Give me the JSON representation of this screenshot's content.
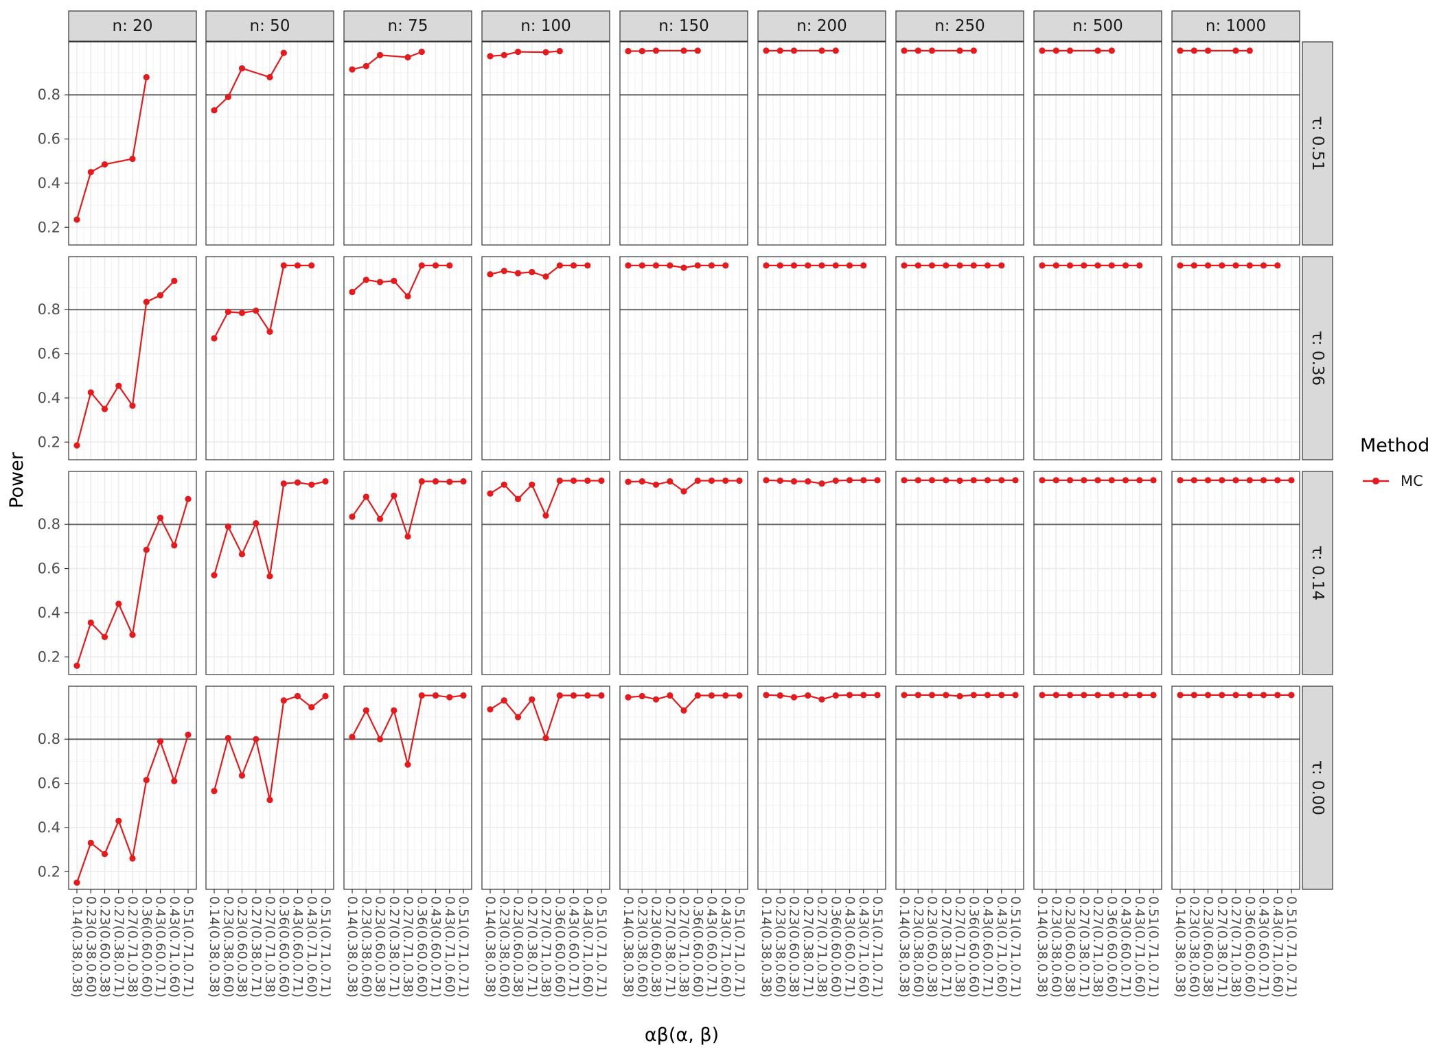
{
  "chart_data": {
    "type": "line",
    "xlabel": "αβ(α, β)",
    "ylabel": "Power",
    "ylim": [
      0.12,
      1.04
    ],
    "y_ticks": [
      "0.2",
      "0.4",
      "0.6",
      "0.8"
    ],
    "reference_line": 0.8,
    "grid": true,
    "legend": {
      "title": "Method",
      "position": "right",
      "entries": [
        {
          "label": "MC",
          "color": "#E41A1C"
        }
      ]
    },
    "categories": [
      "0.14(0.38,0.38)",
      "0.23(0.38,0.60)",
      "0.23(0.60,0.38)",
      "0.27(0.38,0.71)",
      "0.27(0.71,0.38)",
      "0.36(0.60,0.60)",
      "0.43(0.60,0.71)",
      "0.43(0.71,0.60)",
      "0.51(0.71,0.71)"
    ],
    "column_labels": [
      "n: 20",
      "n: 50",
      "n: 75",
      "n: 100",
      "n: 150",
      "n: 200",
      "n: 250",
      "n: 500",
      "n: 1000"
    ],
    "row_labels": [
      "τ: 0.51",
      "τ: 0.36",
      "τ: 0.14",
      "τ: 0.00"
    ],
    "panels": [
      [
        [
          [
            0,
            0.235
          ],
          [
            1,
            0.45
          ],
          [
            2,
            0.485
          ],
          [
            4,
            0.51
          ],
          [
            5,
            0.88
          ]
        ],
        [
          [
            0,
            0.73
          ],
          [
            1,
            0.79
          ],
          [
            2,
            0.92
          ],
          [
            4,
            0.88
          ],
          [
            5,
            0.99
          ]
        ],
        [
          [
            0,
            0.915
          ],
          [
            1,
            0.93
          ],
          [
            2,
            0.98
          ],
          [
            4,
            0.97
          ],
          [
            5,
            0.995
          ]
        ],
        [
          [
            0,
            0.975
          ],
          [
            1,
            0.98
          ],
          [
            2,
            0.995
          ],
          [
            4,
            0.993
          ],
          [
            5,
            0.998
          ]
        ],
        [
          [
            0,
            0.998
          ],
          [
            1,
            0.998
          ],
          [
            2,
            1.0
          ],
          [
            4,
            1.0
          ],
          [
            5,
            1.0
          ]
        ],
        [
          [
            0,
            1.0
          ],
          [
            1,
            1.0
          ],
          [
            2,
            1.0
          ],
          [
            4,
            1.0
          ],
          [
            5,
            1.0
          ]
        ],
        [
          [
            0,
            1.0
          ],
          [
            1,
            1.0
          ],
          [
            2,
            1.0
          ],
          [
            4,
            1.0
          ],
          [
            5,
            1.0
          ]
        ],
        [
          [
            0,
            1.0
          ],
          [
            1,
            1.0
          ],
          [
            2,
            1.0
          ],
          [
            4,
            1.0
          ],
          [
            5,
            1.0
          ]
        ],
        [
          [
            0,
            1.0
          ],
          [
            1,
            1.0
          ],
          [
            2,
            1.0
          ],
          [
            4,
            1.0
          ],
          [
            5,
            1.0
          ]
        ]
      ],
      [
        [
          [
            0,
            0.185
          ],
          [
            1,
            0.425
          ],
          [
            2,
            0.35
          ],
          [
            3,
            0.455
          ],
          [
            4,
            0.365
          ],
          [
            5,
            0.835
          ],
          [
            6,
            0.865
          ],
          [
            7,
            0.93
          ]
        ],
        [
          [
            0,
            0.67
          ],
          [
            1,
            0.79
          ],
          [
            2,
            0.785
          ],
          [
            3,
            0.795
          ],
          [
            4,
            0.7
          ],
          [
            5,
            1.0
          ],
          [
            6,
            1.0
          ],
          [
            7,
            1.0
          ]
        ],
        [
          [
            0,
            0.88
          ],
          [
            1,
            0.935
          ],
          [
            2,
            0.925
          ],
          [
            3,
            0.93
          ],
          [
            4,
            0.86
          ],
          [
            5,
            1.0
          ],
          [
            6,
            1.0
          ],
          [
            7,
            1.0
          ]
        ],
        [
          [
            0,
            0.96
          ],
          [
            1,
            0.975
          ],
          [
            2,
            0.965
          ],
          [
            3,
            0.97
          ],
          [
            4,
            0.95
          ],
          [
            5,
            1.0
          ],
          [
            6,
            1.0
          ],
          [
            7,
            1.0
          ]
        ],
        [
          [
            0,
            1.0
          ],
          [
            1,
            1.0
          ],
          [
            2,
            1.0
          ],
          [
            3,
            1.0
          ],
          [
            4,
            0.99
          ],
          [
            5,
            1.0
          ],
          [
            6,
            1.0
          ],
          [
            7,
            1.0
          ]
        ],
        [
          [
            0,
            1.0
          ],
          [
            1,
            1.0
          ],
          [
            2,
            1.0
          ],
          [
            3,
            1.0
          ],
          [
            4,
            1.0
          ],
          [
            5,
            1.0
          ],
          [
            6,
            1.0
          ],
          [
            7,
            1.0
          ]
        ],
        [
          [
            0,
            1.0
          ],
          [
            1,
            1.0
          ],
          [
            2,
            1.0
          ],
          [
            3,
            1.0
          ],
          [
            4,
            1.0
          ],
          [
            5,
            1.0
          ],
          [
            6,
            1.0
          ],
          [
            7,
            1.0
          ]
        ],
        [
          [
            0,
            1.0
          ],
          [
            1,
            1.0
          ],
          [
            2,
            1.0
          ],
          [
            3,
            1.0
          ],
          [
            4,
            1.0
          ],
          [
            5,
            1.0
          ],
          [
            6,
            1.0
          ],
          [
            7,
            1.0
          ]
        ],
        [
          [
            0,
            1.0
          ],
          [
            1,
            1.0
          ],
          [
            2,
            1.0
          ],
          [
            3,
            1.0
          ],
          [
            4,
            1.0
          ],
          [
            5,
            1.0
          ],
          [
            6,
            1.0
          ],
          [
            7,
            1.0
          ]
        ]
      ],
      [
        [
          [
            0,
            0.16
          ],
          [
            1,
            0.355
          ],
          [
            2,
            0.29
          ],
          [
            3,
            0.44
          ],
          [
            4,
            0.3
          ],
          [
            5,
            0.685
          ],
          [
            6,
            0.83
          ],
          [
            7,
            0.705
          ],
          [
            8,
            0.915
          ]
        ],
        [
          [
            0,
            0.57
          ],
          [
            1,
            0.79
          ],
          [
            2,
            0.665
          ],
          [
            3,
            0.805
          ],
          [
            4,
            0.565
          ],
          [
            5,
            0.985
          ],
          [
            6,
            0.99
          ],
          [
            7,
            0.98
          ],
          [
            8,
            0.995
          ]
        ],
        [
          [
            0,
            0.835
          ],
          [
            1,
            0.925
          ],
          [
            2,
            0.825
          ],
          [
            3,
            0.93
          ],
          [
            4,
            0.745
          ],
          [
            5,
            0.995
          ],
          [
            6,
            0.995
          ],
          [
            7,
            0.993
          ],
          [
            8,
            0.995
          ]
        ],
        [
          [
            0,
            0.94
          ],
          [
            1,
            0.98
          ],
          [
            2,
            0.915
          ],
          [
            3,
            0.98
          ],
          [
            4,
            0.84
          ],
          [
            5,
            0.998
          ],
          [
            6,
            0.998
          ],
          [
            7,
            0.998
          ],
          [
            8,
            0.998
          ]
        ],
        [
          [
            0,
            0.993
          ],
          [
            1,
            0.995
          ],
          [
            2,
            0.98
          ],
          [
            3,
            0.995
          ],
          [
            4,
            0.95
          ],
          [
            5,
            0.998
          ],
          [
            6,
            0.998
          ],
          [
            7,
            0.998
          ],
          [
            8,
            0.998
          ]
        ],
        [
          [
            0,
            1.0
          ],
          [
            1,
            0.998
          ],
          [
            2,
            0.995
          ],
          [
            3,
            0.995
          ],
          [
            4,
            0.985
          ],
          [
            5,
            0.998
          ],
          [
            6,
            1.0
          ],
          [
            7,
            1.0
          ],
          [
            8,
            1.0
          ]
        ],
        [
          [
            0,
            1.0
          ],
          [
            1,
            1.0
          ],
          [
            2,
            1.0
          ],
          [
            3,
            1.0
          ],
          [
            4,
            0.998
          ],
          [
            5,
            1.0
          ],
          [
            6,
            1.0
          ],
          [
            7,
            1.0
          ],
          [
            8,
            1.0
          ]
        ],
        [
          [
            0,
            1.0
          ],
          [
            1,
            1.0
          ],
          [
            2,
            1.0
          ],
          [
            3,
            1.0
          ],
          [
            4,
            1.0
          ],
          [
            5,
            1.0
          ],
          [
            6,
            1.0
          ],
          [
            7,
            1.0
          ],
          [
            8,
            1.0
          ]
        ],
        [
          [
            0,
            1.0
          ],
          [
            1,
            1.0
          ],
          [
            2,
            1.0
          ],
          [
            3,
            1.0
          ],
          [
            4,
            1.0
          ],
          [
            5,
            1.0
          ],
          [
            6,
            1.0
          ],
          [
            7,
            1.0
          ],
          [
            8,
            1.0
          ]
        ]
      ],
      [
        [
          [
            0,
            0.15
          ],
          [
            1,
            0.33
          ],
          [
            2,
            0.28
          ],
          [
            3,
            0.43
          ],
          [
            4,
            0.26
          ],
          [
            5,
            0.615
          ],
          [
            6,
            0.79
          ],
          [
            7,
            0.61
          ],
          [
            8,
            0.82
          ]
        ],
        [
          [
            0,
            0.565
          ],
          [
            1,
            0.805
          ],
          [
            2,
            0.635
          ],
          [
            3,
            0.8
          ],
          [
            4,
            0.525
          ],
          [
            5,
            0.975
          ],
          [
            6,
            0.995
          ],
          [
            7,
            0.945
          ],
          [
            8,
            0.995
          ]
        ],
        [
          [
            0,
            0.81
          ],
          [
            1,
            0.93
          ],
          [
            2,
            0.8
          ],
          [
            3,
            0.93
          ],
          [
            4,
            0.685
          ],
          [
            5,
            0.998
          ],
          [
            6,
            0.998
          ],
          [
            7,
            0.99
          ],
          [
            8,
            0.998
          ]
        ],
        [
          [
            0,
            0.935
          ],
          [
            1,
            0.975
          ],
          [
            2,
            0.9
          ],
          [
            3,
            0.98
          ],
          [
            4,
            0.805
          ],
          [
            5,
            0.998
          ],
          [
            6,
            0.998
          ],
          [
            7,
            0.998
          ],
          [
            8,
            0.998
          ]
        ],
        [
          [
            0,
            0.99
          ],
          [
            1,
            0.995
          ],
          [
            2,
            0.98
          ],
          [
            3,
            0.998
          ],
          [
            4,
            0.93
          ],
          [
            5,
            0.998
          ],
          [
            6,
            0.998
          ],
          [
            7,
            0.998
          ],
          [
            8,
            0.998
          ]
        ],
        [
          [
            0,
            1.0
          ],
          [
            1,
            0.998
          ],
          [
            2,
            0.99
          ],
          [
            3,
            0.998
          ],
          [
            4,
            0.98
          ],
          [
            5,
            0.998
          ],
          [
            6,
            1.0
          ],
          [
            7,
            1.0
          ],
          [
            8,
            1.0
          ]
        ],
        [
          [
            0,
            1.0
          ],
          [
            1,
            1.0
          ],
          [
            2,
            1.0
          ],
          [
            3,
            1.0
          ],
          [
            4,
            0.995
          ],
          [
            5,
            1.0
          ],
          [
            6,
            1.0
          ],
          [
            7,
            1.0
          ],
          [
            8,
            1.0
          ]
        ],
        [
          [
            0,
            1.0
          ],
          [
            1,
            1.0
          ],
          [
            2,
            1.0
          ],
          [
            3,
            1.0
          ],
          [
            4,
            1.0
          ],
          [
            5,
            1.0
          ],
          [
            6,
            1.0
          ],
          [
            7,
            1.0
          ],
          [
            8,
            1.0
          ]
        ],
        [
          [
            0,
            1.0
          ],
          [
            1,
            1.0
          ],
          [
            2,
            1.0
          ],
          [
            3,
            1.0
          ],
          [
            4,
            1.0
          ],
          [
            5,
            1.0
          ],
          [
            6,
            1.0
          ],
          [
            7,
            1.0
          ],
          [
            8,
            1.0
          ]
        ]
      ]
    ]
  }
}
